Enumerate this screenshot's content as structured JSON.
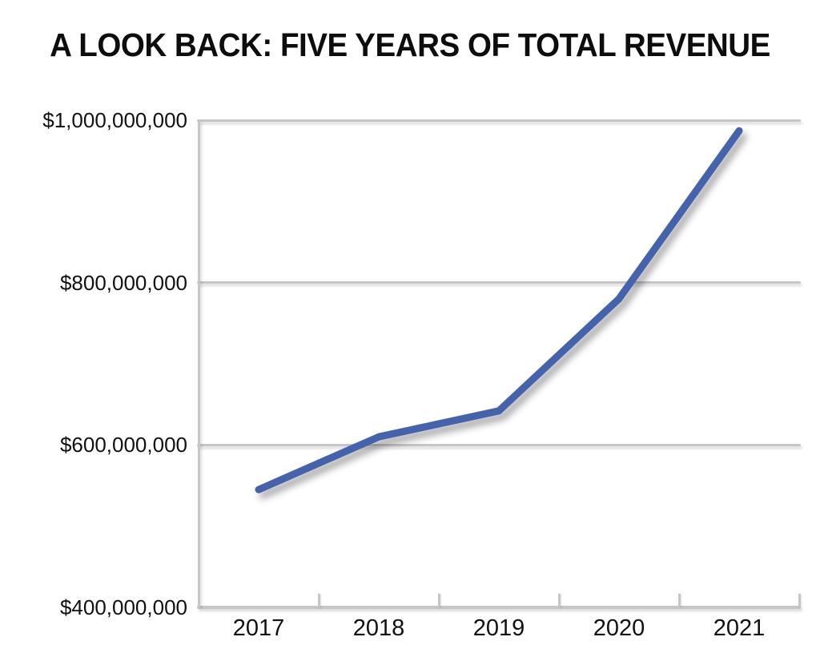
{
  "title": "A LOOK BACK: FIVE YEARS OF TOTAL REVENUE",
  "chart_data": {
    "type": "line",
    "title": "A LOOK BACK: FIVE YEARS OF TOTAL REVENUE",
    "xlabel": "",
    "ylabel": "",
    "categories": [
      "2017",
      "2018",
      "2019",
      "2020",
      "2021"
    ],
    "series": [
      {
        "name": "Total Revenue",
        "values": [
          545000000,
          610000000,
          642000000,
          780000000,
          987000000
        ]
      }
    ],
    "ylim": [
      400000000,
      1000000000
    ],
    "y_ticks": [
      {
        "label": "$1,000,000,000",
        "value": 1000000000
      },
      {
        "label": "$800,000,000",
        "value": 800000000
      },
      {
        "label": "$600,000,000",
        "value": 600000000
      },
      {
        "label": "$400,000,000",
        "value": 400000000
      }
    ],
    "grid": "horizontal",
    "legend": "none",
    "colors": {
      "line": "#4563ac",
      "gridline": "#c6c6c6",
      "label_text": "#111111",
      "title_text": "#0d0d0d",
      "background": "#ffffff"
    }
  }
}
